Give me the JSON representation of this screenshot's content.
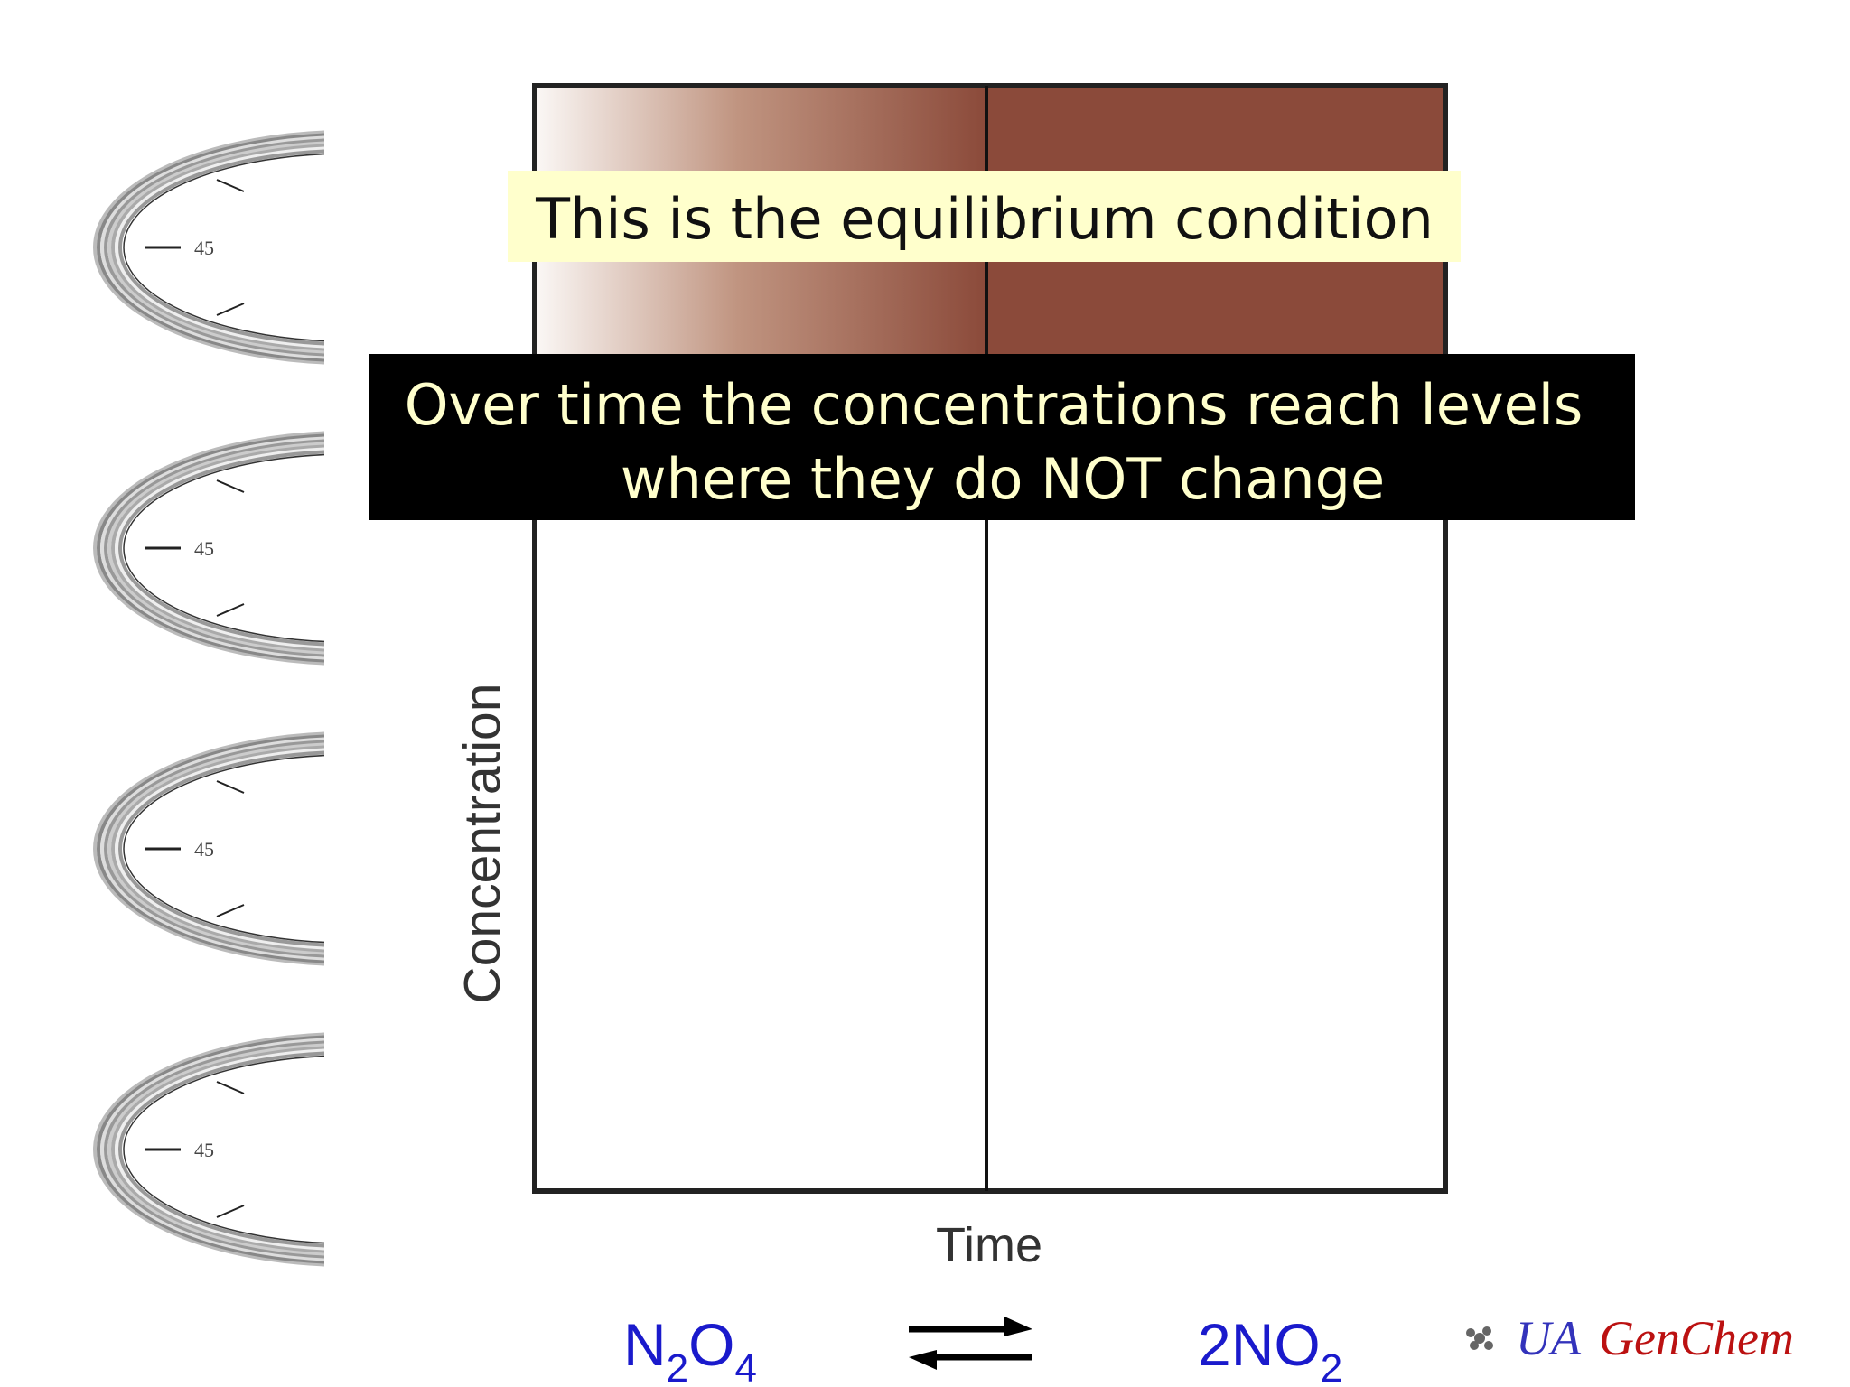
{
  "callouts": {
    "top": "This is the equilibrium condition",
    "main": [
      "Over time the concentrations reach levels",
      "where they do NOT change"
    ]
  },
  "graph": {
    "y_label": "Concentration",
    "x_label": "Time"
  },
  "equation": {
    "reactant": [
      "N",
      "2",
      "O",
      "4"
    ],
    "product": [
      "2NO",
      "2"
    ]
  },
  "logo": {
    "ua": "UA",
    "genchem": "GenChem"
  },
  "clocks": [
    "45",
    "45",
    "45",
    "45"
  ]
}
